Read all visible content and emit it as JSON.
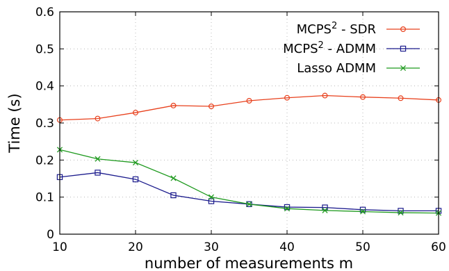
{
  "chart_data": {
    "type": "line",
    "title": "",
    "xlabel": "number of measurements m",
    "ylabel": "Time (s)",
    "xlim": [
      10,
      60
    ],
    "ylim": [
      0,
      0.6
    ],
    "xticks": [
      "10",
      "20",
      "30",
      "40",
      "50",
      "60"
    ],
    "yticks": [
      "0",
      "0.1",
      "0.2",
      "0.3",
      "0.4",
      "0.5",
      "0.6"
    ],
    "grid": true,
    "legend_position": "top-right",
    "x": [
      10,
      15,
      20,
      25,
      30,
      35,
      40,
      45,
      50,
      55,
      60
    ],
    "series": [
      {
        "name": "MCPS² - SDR",
        "name_base": "MCPS",
        "name_sup": "2",
        "name_rest": " - SDR",
        "color": "#e8401c",
        "marker": "circle",
        "values": [
          0.308,
          0.312,
          0.328,
          0.347,
          0.345,
          0.36,
          0.368,
          0.374,
          0.37,
          0.367,
          0.362
        ]
      },
      {
        "name": "MCPS² - ADMM",
        "name_base": "MCPS",
        "name_sup": "2",
        "name_rest": " - ADMM",
        "color": "#1a1a8c",
        "marker": "square",
        "values": [
          0.154,
          0.166,
          0.148,
          0.105,
          0.089,
          0.081,
          0.073,
          0.072,
          0.066,
          0.063,
          0.063
        ]
      },
      {
        "name": "Lasso ADMM",
        "name_base": "Lasso ADMM",
        "name_sup": "",
        "name_rest": "",
        "color": "#1f9a1f",
        "marker": "cross",
        "values": [
          0.228,
          0.203,
          0.193,
          0.151,
          0.1,
          0.081,
          0.069,
          0.064,
          0.061,
          0.058,
          0.057
        ]
      }
    ]
  }
}
